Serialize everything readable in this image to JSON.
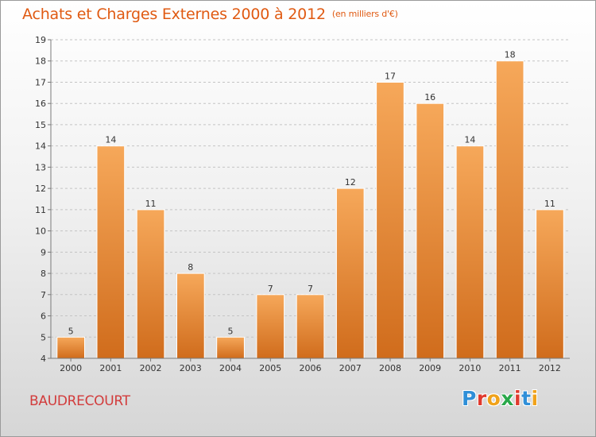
{
  "header": {
    "title": "Achats et Charges Externes 2000 à 2012",
    "unit": "(en milliers d'€)"
  },
  "footer": {
    "place": "BAUDRECOURT",
    "logo_letters": [
      "P",
      "r",
      "o",
      "x",
      "i",
      "t",
      "i"
    ],
    "logo_colors": [
      "#2f8fd8",
      "#e03a2e",
      "#f0a21a",
      "#2aa84a",
      "#e03a2e",
      "#2f8fd8",
      "#f0a21a"
    ]
  },
  "colors": {
    "bar_top": "#f6a85a",
    "bar_bottom": "#d06c1c",
    "grid": "#c4c4c4",
    "axis": "#7a7a7a",
    "text": "#333333"
  },
  "chart_data": {
    "type": "bar",
    "categories": [
      "2000",
      "2001",
      "2002",
      "2003",
      "2004",
      "2005",
      "2006",
      "2007",
      "2008",
      "2009",
      "2010",
      "2011",
      "2012"
    ],
    "values": [
      5,
      14,
      11,
      8,
      5,
      7,
      7,
      12,
      17,
      16,
      14,
      18,
      11
    ],
    "title": "Achats et Charges Externes 2000 à 2012",
    "ylabel": "",
    "xlabel": "",
    "ylim": [
      4,
      19
    ],
    "yticks": [
      4,
      5,
      6,
      7,
      8,
      9,
      10,
      11,
      12,
      13,
      14,
      15,
      16,
      17,
      18,
      19
    ],
    "grid": true
  }
}
